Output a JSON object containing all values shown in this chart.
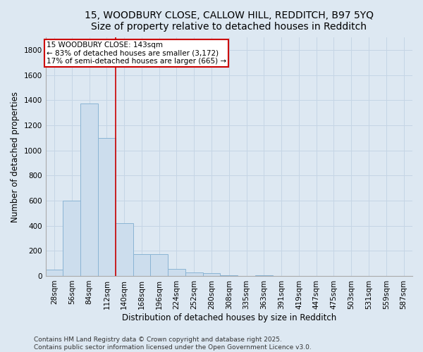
{
  "title_line1": "15, WOODBURY CLOSE, CALLOW HILL, REDDITCH, B97 5YQ",
  "title_line2": "Size of property relative to detached houses in Redditch",
  "xlabel": "Distribution of detached houses by size in Redditch",
  "ylabel": "Number of detached properties",
  "bin_labels": [
    "28sqm",
    "56sqm",
    "84sqm",
    "112sqm",
    "140sqm",
    "168sqm",
    "196sqm",
    "224sqm",
    "252sqm",
    "280sqm",
    "308sqm",
    "335sqm",
    "363sqm",
    "391sqm",
    "419sqm",
    "447sqm",
    "475sqm",
    "503sqm",
    "531sqm",
    "559sqm",
    "587sqm"
  ],
  "bar_heights": [
    50,
    600,
    1375,
    1100,
    420,
    175,
    175,
    55,
    30,
    20,
    8,
    0,
    5,
    0,
    0,
    0,
    0,
    0,
    0,
    0,
    0
  ],
  "bar_color": "#ccdded",
  "bar_edgecolor": "#8ab4d4",
  "bar_linewidth": 0.7,
  "grid_color": "#c5d5e5",
  "background_color": "#dde8f2",
  "annotation_line1": "15 WOODBURY CLOSE: 143sqm",
  "annotation_line2": "← 83% of detached houses are smaller (3,172)",
  "annotation_line3": "17% of semi-detached houses are larger (665) →",
  "annotation_box_color": "#ffffff",
  "annotation_box_edgecolor": "#cc0000",
  "vline_color": "#cc0000",
  "ylim": [
    0,
    1900
  ],
  "yticks": [
    0,
    200,
    400,
    600,
    800,
    1000,
    1200,
    1400,
    1600,
    1800
  ],
  "footnote": "Contains HM Land Registry data © Crown copyright and database right 2025.\nContains public sector information licensed under the Open Government Licence v3.0.",
  "title_fontsize": 10,
  "axis_label_fontsize": 8.5,
  "tick_fontsize": 7.5,
  "annotation_fontsize": 7.5,
  "footnote_fontsize": 6.5
}
